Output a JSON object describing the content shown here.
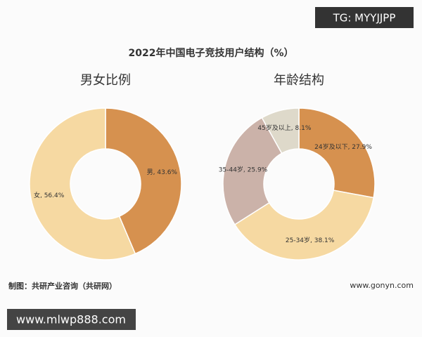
{
  "header": {
    "title": "2022年中国电子竞技用户结构（%）"
  },
  "watermark_top": "TG: MYYJJPP",
  "chart_data": [
    {
      "type": "pie",
      "title": "男女比例",
      "values": [
        43.6,
        56.4
      ],
      "value_labels": [
        "男, 43.6%",
        "女, 56.4%"
      ],
      "colors": [
        "#d6914f",
        "#f6d9a2"
      ]
    },
    {
      "type": "pie",
      "title": "年龄结构",
      "values": [
        27.9,
        38.1,
        25.9,
        8.1
      ],
      "value_labels": [
        "24岁及以下, 27.9%",
        "25-34岁, 38.1%",
        "35-44岁, 25.9%",
        "45岁及以上, 8.1%"
      ],
      "colors": [
        "#d6914f",
        "#f6d9a2",
        "#cbb2a9",
        "#ded9ca"
      ]
    }
  ],
  "footer": {
    "source": "制图：共研产业咨询（共研网）",
    "logo": "www.gonyn.com"
  },
  "watermark_bottom": "www.mlwp888.com"
}
